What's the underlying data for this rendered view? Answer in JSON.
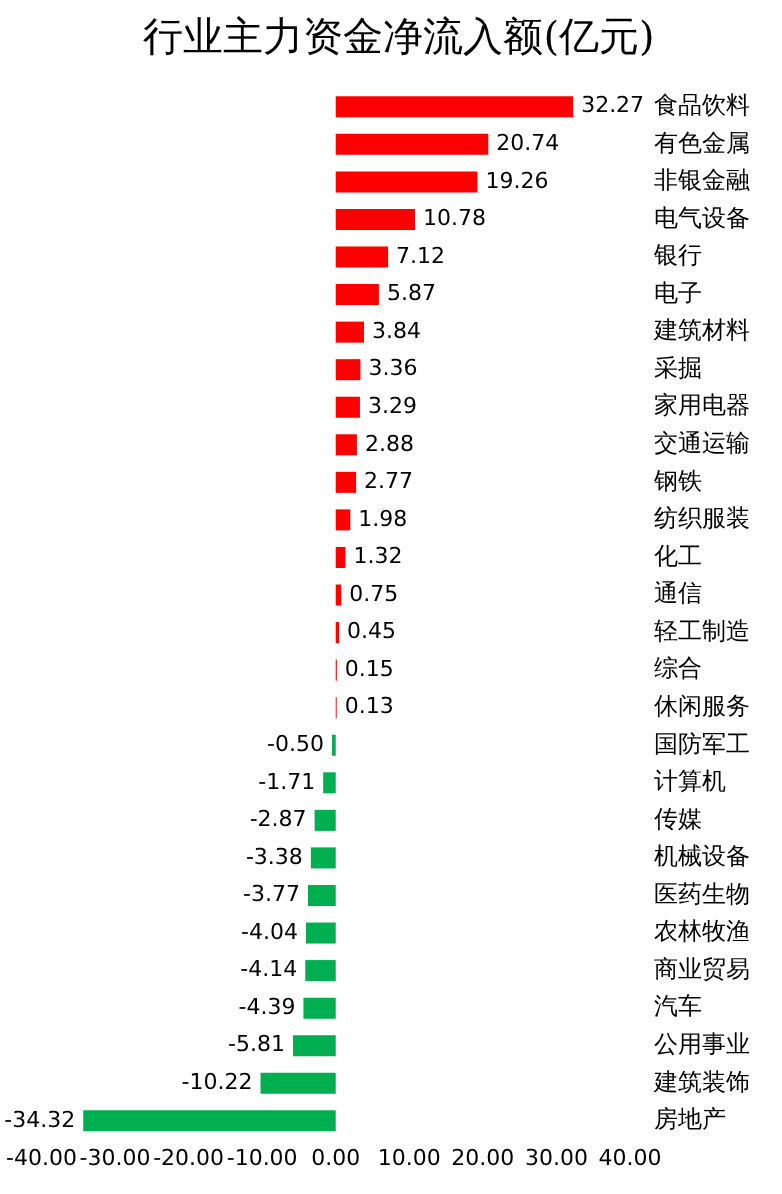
{
  "chart_data": {
    "type": "bar",
    "orientation": "horizontal",
    "title": "行业主力资金净流入额(亿元)",
    "categories": [
      "食品饮料",
      "有色金属",
      "非银金融",
      "电气设备",
      "银行",
      "电子",
      "建筑材料",
      "采掘",
      "家用电器",
      "交通运输",
      "钢铁",
      "纺织服装",
      "化工",
      "通信",
      "轻工制造",
      "综合",
      "休闲服务",
      "国防军工",
      "计算机",
      "传媒",
      "机械设备",
      "医药生物",
      "农林牧渔",
      "商业贸易",
      "汽车",
      "公用事业",
      "建筑装饰",
      "房地产"
    ],
    "values": [
      32.27,
      20.74,
      19.26,
      10.78,
      7.12,
      5.87,
      3.84,
      3.36,
      3.29,
      2.88,
      2.77,
      1.98,
      1.32,
      0.75,
      0.45,
      0.15,
      0.13,
      -0.5,
      -1.71,
      -2.87,
      -3.38,
      -3.77,
      -4.04,
      -4.14,
      -4.39,
      -5.81,
      -10.22,
      -34.32
    ],
    "value_labels": [
      "32.27",
      "20.74",
      "19.26",
      "10.78",
      "7.12",
      "5.87",
      "3.84",
      "3.36",
      "3.29",
      "2.88",
      "2.77",
      "1.98",
      "1.32",
      "0.75",
      "0.45",
      "0.15",
      "0.13",
      "-0.50",
      "-1.71",
      "-2.87",
      "-3.38",
      "-3.77",
      "-4.04",
      "-4.14",
      "-4.39",
      "-5.81",
      "-10.22",
      "-34.32"
    ],
    "colors": [
      "#ff0000",
      "#ff0000",
      "#ff0000",
      "#ff0000",
      "#ff0000",
      "#ff0000",
      "#ff0000",
      "#ff0000",
      "#ff0000",
      "#ff0000",
      "#ff0000",
      "#ff0000",
      "#ff0000",
      "#ff0000",
      "#ff0000",
      "#ff0000",
      "#ff0000",
      "#00b050",
      "#00b050",
      "#00b050",
      "#00b050",
      "#00b050",
      "#00b050",
      "#00b050",
      "#00b050",
      "#00b050",
      "#00b050",
      "#00b050"
    ],
    "xlim": [
      -40,
      40
    ],
    "xticks": [
      {
        "value": -40,
        "label": "-40.00"
      },
      {
        "value": -30,
        "label": "-30.00"
      },
      {
        "value": -20,
        "label": "-20.00"
      },
      {
        "value": -10,
        "label": "-10.00"
      },
      {
        "value": 0,
        "label": "0.00"
      },
      {
        "value": 10,
        "label": "10.00"
      },
      {
        "value": 20,
        "label": "20.00"
      },
      {
        "value": 30,
        "label": "30.00"
      },
      {
        "value": 40,
        "label": "40.00"
      }
    ],
    "grid": false,
    "legend": false
  }
}
